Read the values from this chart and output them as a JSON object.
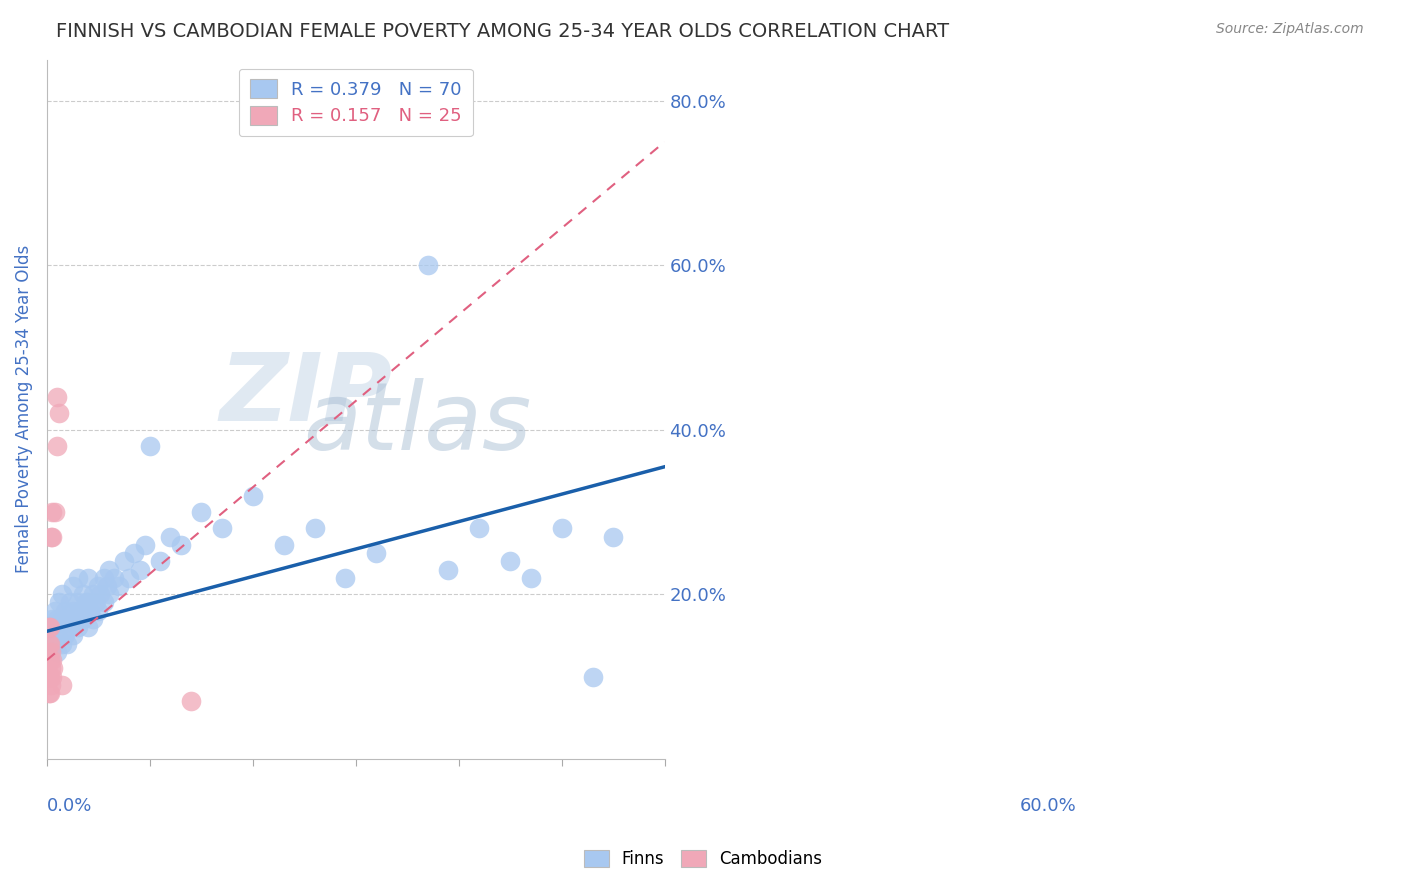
{
  "title": "FINNISH VS CAMBODIAN FEMALE POVERTY AMONG 25-34 YEAR OLDS CORRELATION CHART",
  "source": "Source: ZipAtlas.com",
  "ylabel": "Female Poverty Among 25-34 Year Olds",
  "yticks": [
    0.0,
    0.2,
    0.4,
    0.6,
    0.8
  ],
  "xmin": 0.0,
  "xmax": 0.6,
  "ymin": 0.0,
  "ymax": 0.85,
  "finn_R": 0.379,
  "finn_N": 70,
  "camb_R": 0.157,
  "camb_N": 25,
  "finn_color": "#a8c8f0",
  "camb_color": "#f0a8b8",
  "finn_line_color": "#1a5faa",
  "camb_line_color": "#e06080",
  "legend_finn_label": "R = 0.379   N = 70",
  "legend_camb_label": "R = 0.157   N = 25",
  "watermark_zip": "ZIP",
  "watermark_atlas": "atlas",
  "watermark_color_zip": "#c8d8e8",
  "watermark_color_atlas": "#a0b8d0",
  "background_color": "#ffffff",
  "title_color": "#333333",
  "axis_label_color": "#4472c4",
  "finn_points": [
    [
      0.005,
      0.16
    ],
    [
      0.005,
      0.17
    ],
    [
      0.008,
      0.14
    ],
    [
      0.008,
      0.18
    ],
    [
      0.01,
      0.13
    ],
    [
      0.01,
      0.15
    ],
    [
      0.01,
      0.17
    ],
    [
      0.012,
      0.16
    ],
    [
      0.012,
      0.19
    ],
    [
      0.015,
      0.14
    ],
    [
      0.015,
      0.17
    ],
    [
      0.015,
      0.2
    ],
    [
      0.018,
      0.15
    ],
    [
      0.018,
      0.18
    ],
    [
      0.02,
      0.14
    ],
    [
      0.02,
      0.17
    ],
    [
      0.022,
      0.16
    ],
    [
      0.022,
      0.19
    ],
    [
      0.025,
      0.15
    ],
    [
      0.025,
      0.18
    ],
    [
      0.025,
      0.21
    ],
    [
      0.028,
      0.17
    ],
    [
      0.03,
      0.16
    ],
    [
      0.03,
      0.19
    ],
    [
      0.03,
      0.22
    ],
    [
      0.032,
      0.18
    ],
    [
      0.035,
      0.17
    ],
    [
      0.035,
      0.2
    ],
    [
      0.038,
      0.19
    ],
    [
      0.04,
      0.16
    ],
    [
      0.04,
      0.19
    ],
    [
      0.04,
      0.22
    ],
    [
      0.042,
      0.18
    ],
    [
      0.045,
      0.17
    ],
    [
      0.045,
      0.2
    ],
    [
      0.048,
      0.19
    ],
    [
      0.05,
      0.18
    ],
    [
      0.05,
      0.21
    ],
    [
      0.052,
      0.2
    ],
    [
      0.055,
      0.19
    ],
    [
      0.055,
      0.22
    ],
    [
      0.058,
      0.21
    ],
    [
      0.06,
      0.2
    ],
    [
      0.06,
      0.23
    ],
    [
      0.065,
      0.22
    ],
    [
      0.07,
      0.21
    ],
    [
      0.075,
      0.24
    ],
    [
      0.08,
      0.22
    ],
    [
      0.085,
      0.25
    ],
    [
      0.09,
      0.23
    ],
    [
      0.095,
      0.26
    ],
    [
      0.1,
      0.38
    ],
    [
      0.11,
      0.24
    ],
    [
      0.12,
      0.27
    ],
    [
      0.13,
      0.26
    ],
    [
      0.15,
      0.3
    ],
    [
      0.17,
      0.28
    ],
    [
      0.2,
      0.32
    ],
    [
      0.23,
      0.26
    ],
    [
      0.26,
      0.28
    ],
    [
      0.29,
      0.22
    ],
    [
      0.32,
      0.25
    ],
    [
      0.37,
      0.6
    ],
    [
      0.39,
      0.23
    ],
    [
      0.42,
      0.28
    ],
    [
      0.45,
      0.24
    ],
    [
      0.47,
      0.22
    ],
    [
      0.5,
      0.28
    ],
    [
      0.53,
      0.1
    ],
    [
      0.55,
      0.27
    ]
  ],
  "camb_points": [
    [
      0.002,
      0.08
    ],
    [
      0.002,
      0.1
    ],
    [
      0.002,
      0.12
    ],
    [
      0.002,
      0.14
    ],
    [
      0.002,
      0.16
    ],
    [
      0.003,
      0.08
    ],
    [
      0.003,
      0.1
    ],
    [
      0.003,
      0.12
    ],
    [
      0.003,
      0.14
    ],
    [
      0.003,
      0.16
    ],
    [
      0.004,
      0.09
    ],
    [
      0.004,
      0.11
    ],
    [
      0.004,
      0.13
    ],
    [
      0.004,
      0.27
    ],
    [
      0.005,
      0.1
    ],
    [
      0.005,
      0.12
    ],
    [
      0.005,
      0.27
    ],
    [
      0.005,
      0.3
    ],
    [
      0.006,
      0.11
    ],
    [
      0.008,
      0.3
    ],
    [
      0.01,
      0.38
    ],
    [
      0.01,
      0.44
    ],
    [
      0.012,
      0.42
    ],
    [
      0.015,
      0.09
    ],
    [
      0.14,
      0.07
    ]
  ]
}
